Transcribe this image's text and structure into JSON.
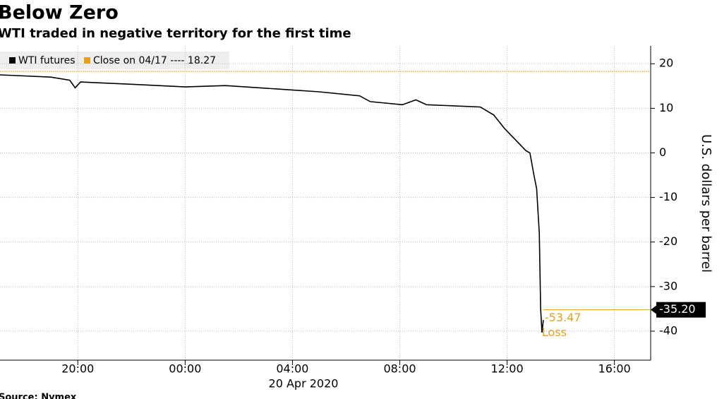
{
  "chart_data": {
    "type": "line",
    "title": "Below Zero",
    "subtitle": "WTI traded in negative territory for the first time",
    "y_label": "U.S. dollars per barrel",
    "x_sublabel": "20 Apr 2020",
    "source": "Source: Nymex",
    "x": [
      -6.9,
      -5.0,
      -4.3,
      -4.1,
      -3.9,
      -2.0,
      0,
      1.5,
      3.5,
      5.0,
      6.5,
      6.9,
      8.1,
      8.6,
      9.0,
      11.0,
      11.5,
      11.9,
      12.3,
      12.7,
      12.85,
      13.0,
      13.1,
      13.2,
      13.25,
      13.3,
      13.35
    ],
    "series": [
      {
        "name": "WTI futures",
        "color": "#000000",
        "values": [
          17.5,
          17.0,
          16.3,
          14.6,
          15.9,
          15.4,
          14.8,
          15.1,
          14.3,
          13.7,
          12.8,
          11.5,
          10.8,
          11.9,
          10.8,
          10.3,
          8.5,
          5.5,
          3.0,
          0.5,
          0.0,
          -5,
          -8,
          -18,
          -35,
          -40.3,
          -37.5
        ]
      }
    ],
    "reference_line": {
      "name": "Close on 04/17 ---- 18.27",
      "value": 18.27,
      "color": "#e8a020"
    },
    "last_price": {
      "value": -35.2,
      "label": "-35.20"
    },
    "annotations": [
      "-53.47",
      "Loss"
    ],
    "xlim": [
      -6.9,
      17.35
    ],
    "xticks": [
      {
        "value": -4,
        "label": "20:00"
      },
      {
        "value": 0,
        "label": "00:00"
      },
      {
        "value": 4,
        "label": "04:00"
      },
      {
        "value": 8,
        "label": "08:00"
      },
      {
        "value": 12,
        "label": "12:00"
      },
      {
        "value": 16,
        "label": "16:00"
      }
    ],
    "ylim": [
      -46.5,
      24
    ],
    "yticks": [
      20,
      10,
      0,
      -10,
      -20,
      -30,
      -40
    ],
    "grid": true
  }
}
